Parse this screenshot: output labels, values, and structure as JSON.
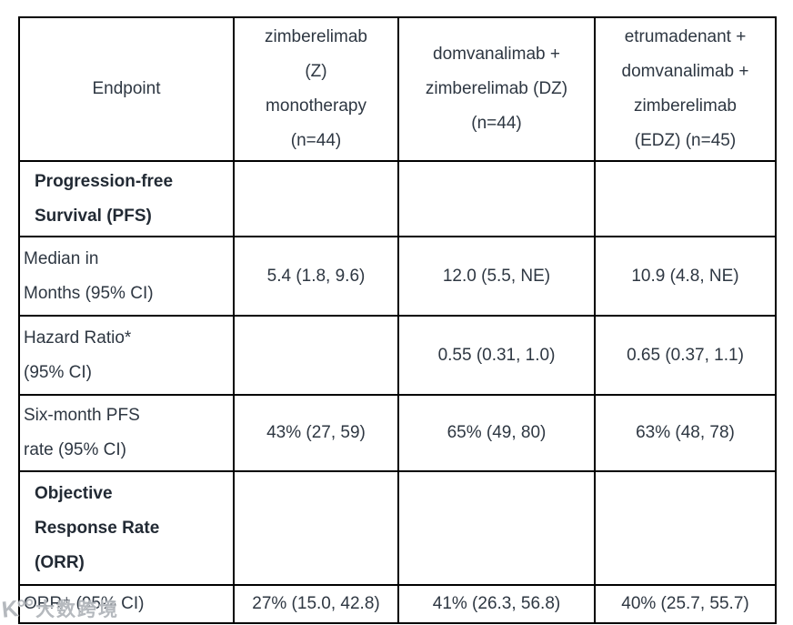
{
  "table": {
    "header": {
      "endpoint": "Endpoint",
      "col_z": "zimberelimab\n(Z)\nmonotherapy\n(n=44)",
      "col_dz": "domvanalimab +\nzimberelimab (DZ)\n(n=44)",
      "col_edz": "etrumadenant +\ndomvanalimab +\nzimberelimab\n(EDZ) (n=45)"
    },
    "rows": [
      {
        "type": "section",
        "label": "Progression-free\nSurvival (PFS)",
        "z": "",
        "dz": "",
        "edz": ""
      },
      {
        "type": "sub",
        "label": "Median in\nMonths (95% CI)",
        "z": "5.4 (1.8, 9.6)",
        "dz": "12.0 (5.5, NE)",
        "edz": "10.9 (4.8, NE)"
      },
      {
        "type": "sub",
        "label": "Hazard Ratio*\n(95% CI)",
        "z": "",
        "dz": "0.55 (0.31, 1.0)",
        "edz": "0.65 (0.37, 1.1)"
      },
      {
        "type": "sub",
        "label": "Six-month PFS\nrate (95% CI)",
        "z": "43% (27, 59)",
        "dz": "65% (49, 80)",
        "edz": "63% (48, 78)"
      },
      {
        "type": "section",
        "label": "Objective\nResponse Rate\n(ORR)",
        "z": "",
        "dz": "",
        "edz": ""
      },
      {
        "type": "sub",
        "label": "ORR⁺ (95% CI)",
        "z": "27% (15.0, 42.8)",
        "dz": "41% (26.3, 56.8)",
        "edz": "40% (25.7, 55.7)"
      }
    ]
  },
  "watermark": {
    "logo": "K°°",
    "text": "大数跨境"
  },
  "colors": {
    "border": "#000000",
    "text": "#2e3742",
    "bold_text": "#222a34",
    "background": "#ffffff",
    "watermark": "#969ba2"
  }
}
